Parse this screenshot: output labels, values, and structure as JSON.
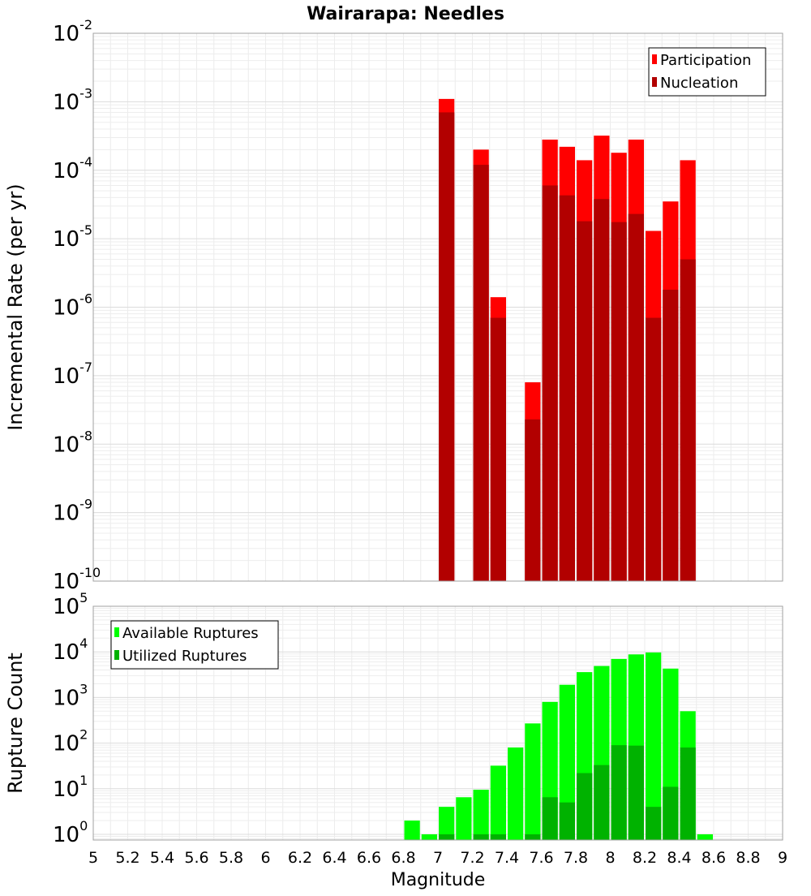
{
  "chart_data": [
    {
      "type": "bar",
      "title": "Wairarapa: Needles",
      "xlabel": "",
      "ylabel": "Incremental Rate (per yr)",
      "yscale": "log",
      "ylim": [
        1e-10,
        0.01
      ],
      "xlim": [
        5.0,
        9.0
      ],
      "bin_width": 0.1,
      "grid": true,
      "legend_position": "top-right",
      "y_tick_exponents": [
        -10,
        -9,
        -8,
        -7,
        -6,
        -5,
        -4,
        -3,
        -2
      ],
      "series": [
        {
          "name": "Participation",
          "color": "#ff0000",
          "points": [
            {
              "x": 7.05,
              "y": 0.0011
            },
            {
              "x": 7.25,
              "y": 0.0002
            },
            {
              "x": 7.35,
              "y": 1.4e-06
            },
            {
              "x": 7.55,
              "y": 8e-08
            },
            {
              "x": 7.65,
              "y": 0.00028
            },
            {
              "x": 7.75,
              "y": 0.00022
            },
            {
              "x": 7.85,
              "y": 0.00014
            },
            {
              "x": 7.95,
              "y": 0.00032
            },
            {
              "x": 8.05,
              "y": 0.00018
            },
            {
              "x": 8.15,
              "y": 0.00028
            },
            {
              "x": 8.25,
              "y": 1.3e-05
            },
            {
              "x": 8.35,
              "y": 3.5e-05
            },
            {
              "x": 8.45,
              "y": 0.00014
            }
          ]
        },
        {
          "name": "Nucleation",
          "color": "#b20000",
          "points": [
            {
              "x": 7.05,
              "y": 0.0007
            },
            {
              "x": 7.25,
              "y": 0.00012
            },
            {
              "x": 7.35,
              "y": 7e-07
            },
            {
              "x": 7.55,
              "y": 2.3e-08
            },
            {
              "x": 7.65,
              "y": 6e-05
            },
            {
              "x": 7.75,
              "y": 4.3e-05
            },
            {
              "x": 7.85,
              "y": 1.8e-05
            },
            {
              "x": 7.95,
              "y": 3.8e-05
            },
            {
              "x": 8.05,
              "y": 1.75e-05
            },
            {
              "x": 8.15,
              "y": 2.3e-05
            },
            {
              "x": 8.25,
              "y": 7e-07
            },
            {
              "x": 8.35,
              "y": 1.8e-06
            },
            {
              "x": 8.45,
              "y": 5e-06
            }
          ]
        }
      ]
    },
    {
      "type": "bar",
      "title": "",
      "xlabel": "Magnitude",
      "ylabel": "Rupture Count",
      "yscale": "log",
      "ylim": [
        0.75,
        100000
      ],
      "xlim": [
        5.0,
        9.0
      ],
      "bin_width": 0.1,
      "grid": true,
      "legend_position": "top-left",
      "y_tick_exponents": [
        0,
        1,
        2,
        3,
        4,
        5
      ],
      "x_ticks": [
        "5",
        "5.2",
        "5.4",
        "5.6",
        "5.8",
        "6",
        "6.2",
        "6.4",
        "6.6",
        "6.8",
        "7",
        "7.2",
        "7.4",
        "7.6",
        "7.8",
        "8",
        "8.2",
        "8.4",
        "8.6",
        "8.8",
        "9"
      ],
      "series": [
        {
          "name": "Available Ruptures",
          "color": "#00ff00",
          "points": [
            {
              "x": 6.85,
              "y": 2
            },
            {
              "x": 6.95,
              "y": 1
            },
            {
              "x": 7.05,
              "y": 4
            },
            {
              "x": 7.15,
              "y": 6.5
            },
            {
              "x": 7.25,
              "y": 9.5
            },
            {
              "x": 7.35,
              "y": 32
            },
            {
              "x": 7.45,
              "y": 80
            },
            {
              "x": 7.55,
              "y": 270
            },
            {
              "x": 7.65,
              "y": 800
            },
            {
              "x": 7.75,
              "y": 1900
            },
            {
              "x": 7.85,
              "y": 3600
            },
            {
              "x": 7.95,
              "y": 4900
            },
            {
              "x": 8.05,
              "y": 7000
            },
            {
              "x": 8.15,
              "y": 8800
            },
            {
              "x": 8.25,
              "y": 9700
            },
            {
              "x": 8.35,
              "y": 4300
            },
            {
              "x": 8.45,
              "y": 500
            },
            {
              "x": 8.55,
              "y": 1
            }
          ]
        },
        {
          "name": "Utilized Ruptures",
          "color": "#00b200",
          "points": [
            {
              "x": 7.05,
              "y": 1
            },
            {
              "x": 7.25,
              "y": 1
            },
            {
              "x": 7.35,
              "y": 1
            },
            {
              "x": 7.55,
              "y": 1
            },
            {
              "x": 7.65,
              "y": 6.5
            },
            {
              "x": 7.75,
              "y": 5
            },
            {
              "x": 7.85,
              "y": 22
            },
            {
              "x": 7.95,
              "y": 33
            },
            {
              "x": 8.05,
              "y": 90
            },
            {
              "x": 8.15,
              "y": 88
            },
            {
              "x": 8.25,
              "y": 4
            },
            {
              "x": 8.35,
              "y": 11
            },
            {
              "x": 8.45,
              "y": 80
            }
          ]
        }
      ]
    }
  ]
}
